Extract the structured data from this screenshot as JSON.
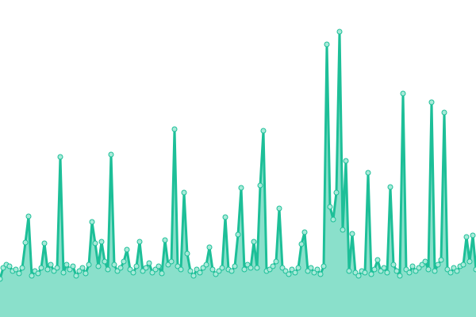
{
  "chart_data": {
    "type": "area",
    "title": "",
    "xlabel": "",
    "ylabel": "",
    "ylim": [
      0,
      400
    ],
    "grid": false,
    "legend": "none",
    "markers": true,
    "colors": {
      "line": "#1dbf98",
      "fill": "#8ae0cb",
      "marker_fill": "#a8ead9",
      "marker_stroke": "#1dbf98"
    },
    "series": [
      {
        "values": [
          48,
          62,
          66,
          64,
          58,
          60,
          55,
          62,
          94,
          127,
          52,
          58,
          55,
          62,
          93,
          60,
          66,
          58,
          62,
          202,
          56,
          66,
          60,
          64,
          52,
          58,
          62,
          55,
          66,
          120,
          93,
          64,
          95,
          70,
          60,
          205,
          66,
          58,
          62,
          70,
          85,
          60,
          56,
          64,
          95,
          58,
          62,
          68,
          56,
          60,
          64,
          55,
          97,
          66,
          70,
          237,
          64,
          60,
          157,
          80,
          58,
          52,
          60,
          56,
          62,
          66,
          88,
          60,
          54,
          58,
          62,
          126,
          60,
          58,
          64,
          104,
          163,
          60,
          66,
          62,
          95,
          62,
          166,
          235,
          58,
          60,
          64,
          70,
          137,
          62,
          58,
          54,
          60,
          56,
          62,
          92,
          107,
          58,
          62,
          56,
          60,
          54,
          64,
          344,
          139,
          123,
          157,
          360,
          110,
          197,
          58,
          105,
          56,
          52,
          58,
          56,
          182,
          54,
          60,
          72,
          58,
          62,
          56,
          164,
          66,
          58,
          52,
          282,
          60,
          56,
          64,
          58,
          62,
          66,
          70,
          60,
          271,
          58,
          66,
          72,
          258,
          60,
          56,
          62,
          58,
          64,
          66,
          101,
          70,
          103,
          60
        ]
      }
    ]
  }
}
